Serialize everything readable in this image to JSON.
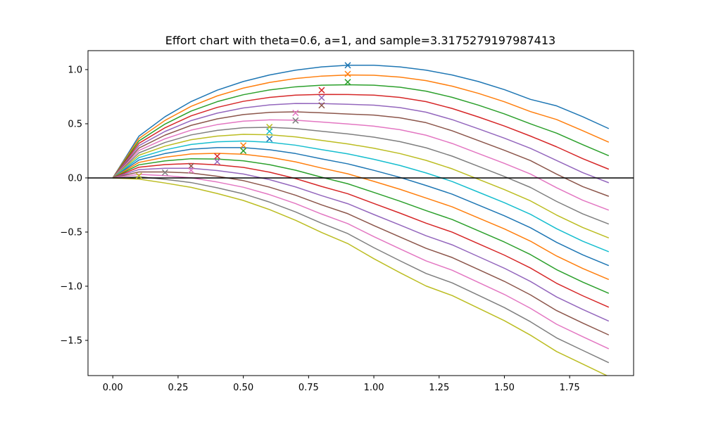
{
  "chart_data": {
    "type": "line",
    "title": "Effort chart with theta=0.6, a=1, and sample=3.3175279197987413",
    "xlabel": "",
    "ylabel": "",
    "xlim": [
      -0.095,
      1.995
    ],
    "ylim": [
      -1.825,
      1.175
    ],
    "x_ticks": [
      0.0,
      0.25,
      0.5,
      0.75,
      1.0,
      1.25,
      1.5,
      1.75
    ],
    "x_tick_labels": [
      "0.00",
      "0.25",
      "0.50",
      "0.75",
      "1.00",
      "1.25",
      "1.50",
      "1.75"
    ],
    "y_ticks": [
      -1.5,
      -1.0,
      -0.5,
      0.0,
      0.5,
      1.0
    ],
    "y_tick_labels": [
      "−1.5",
      "−1.0",
      "−0.5",
      "0.0",
      "0.5",
      "1.0"
    ],
    "grid": false,
    "reference_line": {
      "y": 0.0,
      "color": "#000000"
    },
    "x": [
      0.0,
      0.1,
      0.2,
      0.3,
      0.4,
      0.5,
      0.6,
      0.7,
      0.8,
      0.9,
      1.0,
      1.1,
      1.2,
      1.3,
      1.4,
      1.5,
      1.6,
      1.7,
      1.8,
      1.9
    ],
    "marker_style": "x",
    "series": [
      {
        "color": "#1f77b4",
        "values": [
          0.0,
          0.385,
          0.565,
          0.705,
          0.81,
          0.89,
          0.95,
          0.995,
          1.025,
          1.04,
          1.04,
          1.025,
          0.995,
          0.95,
          0.89,
          0.815,
          0.725,
          0.665,
          0.565,
          0.455
        ],
        "marker": {
          "x": 0.9,
          "y": 1.04
        }
      },
      {
        "color": "#ff7f0e",
        "values": [
          0.0,
          0.363,
          0.531,
          0.661,
          0.757,
          0.829,
          0.881,
          0.918,
          0.94,
          0.95,
          0.948,
          0.931,
          0.898,
          0.847,
          0.781,
          0.703,
          0.612,
          0.539,
          0.436,
          0.33
        ],
        "marker": {
          "x": 0.9,
          "y": 0.96
        }
      },
      {
        "color": "#2ca02c",
        "values": [
          0.0,
          0.341,
          0.497,
          0.617,
          0.704,
          0.768,
          0.812,
          0.841,
          0.856,
          0.86,
          0.856,
          0.837,
          0.801,
          0.744,
          0.672,
          0.591,
          0.499,
          0.413,
          0.307,
          0.205
        ],
        "marker": {
          "x": 0.9,
          "y": 0.885
        }
      },
      {
        "color": "#d62728",
        "values": [
          0.0,
          0.319,
          0.463,
          0.573,
          0.651,
          0.707,
          0.743,
          0.764,
          0.771,
          0.77,
          0.764,
          0.743,
          0.704,
          0.641,
          0.563,
          0.479,
          0.386,
          0.287,
          0.178,
          0.08
        ],
        "marker": {
          "x": 0.8,
          "y": 0.81
        }
      },
      {
        "color": "#9467bd",
        "values": [
          0.0,
          0.297,
          0.429,
          0.529,
          0.598,
          0.646,
          0.674,
          0.687,
          0.686,
          0.68,
          0.672,
          0.649,
          0.607,
          0.538,
          0.454,
          0.367,
          0.273,
          0.161,
          0.049,
          -0.045
        ],
        "marker": {
          "x": 0.8,
          "y": 0.74
        }
      },
      {
        "color": "#8c564b",
        "values": [
          0.0,
          0.275,
          0.395,
          0.485,
          0.545,
          0.585,
          0.605,
          0.61,
          0.601,
          0.59,
          0.58,
          0.555,
          0.51,
          0.435,
          0.345,
          0.255,
          0.16,
          0.035,
          -0.08,
          -0.17
        ],
        "marker": {
          "x": 0.8,
          "y": 0.67
        }
      },
      {
        "color": "#e377c2",
        "values": [
          0.0,
          0.253,
          0.361,
          0.441,
          0.492,
          0.524,
          0.536,
          0.533,
          0.516,
          0.498,
          0.478,
          0.445,
          0.394,
          0.318,
          0.226,
          0.134,
          0.036,
          -0.091,
          -0.206,
          -0.298
        ],
        "marker": {
          "x": 0.7,
          "y": 0.6
        }
      },
      {
        "color": "#7f7f7f",
        "values": [
          0.0,
          0.231,
          0.327,
          0.397,
          0.439,
          0.463,
          0.467,
          0.456,
          0.431,
          0.406,
          0.376,
          0.335,
          0.278,
          0.201,
          0.107,
          0.013,
          -0.088,
          -0.217,
          -0.332,
          -0.426
        ],
        "marker": {
          "x": 0.7,
          "y": 0.53
        }
      },
      {
        "color": "#bcbd22",
        "values": [
          0.0,
          0.209,
          0.293,
          0.353,
          0.386,
          0.402,
          0.398,
          0.379,
          0.346,
          0.314,
          0.274,
          0.225,
          0.162,
          0.084,
          -0.012,
          -0.108,
          -0.212,
          -0.343,
          -0.458,
          -0.554
        ],
        "marker": {
          "x": 0.6,
          "y": 0.47
        }
      },
      {
        "color": "#17becf",
        "values": [
          0.0,
          0.187,
          0.259,
          0.309,
          0.333,
          0.341,
          0.329,
          0.302,
          0.261,
          0.222,
          0.172,
          0.115,
          0.046,
          -0.033,
          -0.131,
          -0.229,
          -0.336,
          -0.469,
          -0.584,
          -0.682
        ],
        "marker": {
          "x": 0.6,
          "y": 0.43
        }
      },
      {
        "color": "#1f77b4",
        "values": [
          0.0,
          0.165,
          0.225,
          0.265,
          0.28,
          0.28,
          0.26,
          0.225,
          0.176,
          0.13,
          0.07,
          0.005,
          -0.07,
          -0.15,
          -0.25,
          -0.35,
          -0.46,
          -0.595,
          -0.71,
          -0.81
        ],
        "marker": {
          "x": 0.6,
          "y": 0.36
        }
      },
      {
        "color": "#ff7f0e",
        "values": [
          0.0,
          0.143,
          0.191,
          0.221,
          0.227,
          0.219,
          0.191,
          0.148,
          0.091,
          0.038,
          -0.032,
          -0.105,
          -0.186,
          -0.267,
          -0.369,
          -0.471,
          -0.584,
          -0.721,
          -0.836,
          -0.938
        ],
        "marker": {
          "x": 0.5,
          "y": 0.3
        }
      },
      {
        "color": "#2ca02c",
        "values": [
          0.0,
          0.121,
          0.157,
          0.177,
          0.174,
          0.158,
          0.122,
          0.071,
          0.006,
          -0.054,
          -0.134,
          -0.215,
          -0.302,
          -0.384,
          -0.488,
          -0.592,
          -0.708,
          -0.847,
          -0.962,
          -1.066
        ],
        "marker": {
          "x": 0.5,
          "y": 0.25
        }
      },
      {
        "color": "#d62728",
        "values": [
          0.0,
          0.099,
          0.123,
          0.133,
          0.121,
          0.097,
          0.053,
          -0.006,
          -0.079,
          -0.146,
          -0.236,
          -0.325,
          -0.418,
          -0.501,
          -0.607,
          -0.713,
          -0.832,
          -0.973,
          -1.088,
          -1.194
        ],
        "marker": {
          "x": 0.4,
          "y": 0.2
        }
      },
      {
        "color": "#9467bd",
        "values": [
          0.0,
          0.077,
          0.089,
          0.089,
          0.068,
          0.036,
          -0.016,
          -0.083,
          -0.164,
          -0.238,
          -0.338,
          -0.435,
          -0.534,
          -0.618,
          -0.726,
          -0.834,
          -0.956,
          -1.099,
          -1.214,
          -1.322
        ],
        "marker": {
          "x": 0.4,
          "y": 0.15
        }
      },
      {
        "color": "#8c564b",
        "values": [
          0.0,
          0.055,
          0.055,
          0.045,
          0.015,
          -0.025,
          -0.085,
          -0.16,
          -0.249,
          -0.33,
          -0.44,
          -0.545,
          -0.65,
          -0.735,
          -0.845,
          -0.955,
          -1.08,
          -1.225,
          -1.34,
          -1.45
        ],
        "marker": {
          "x": 0.3,
          "y": 0.11
        }
      },
      {
        "color": "#e377c2",
        "values": [
          0.0,
          0.033,
          0.021,
          0.001,
          -0.038,
          -0.086,
          -0.154,
          -0.237,
          -0.334,
          -0.422,
          -0.542,
          -0.655,
          -0.766,
          -0.852,
          -0.964,
          -1.076,
          -1.204,
          -1.351,
          -1.466,
          -1.578
        ],
        "marker": {
          "x": 0.3,
          "y": 0.07
        }
      },
      {
        "color": "#7f7f7f",
        "values": [
          0.0,
          0.011,
          -0.013,
          -0.043,
          -0.091,
          -0.147,
          -0.223,
          -0.314,
          -0.419,
          -0.514,
          -0.644,
          -0.765,
          -0.882,
          -0.969,
          -1.083,
          -1.197,
          -1.328,
          -1.477,
          -1.592,
          -1.706
        ],
        "marker": {
          "x": 0.2,
          "y": 0.05
        }
      },
      {
        "color": "#bcbd22",
        "values": [
          0.0,
          -0.011,
          -0.047,
          -0.087,
          -0.144,
          -0.208,
          -0.292,
          -0.391,
          -0.504,
          -0.606,
          -0.746,
          -0.875,
          -0.998,
          -1.086,
          -1.202,
          -1.318,
          -1.452,
          -1.603,
          -1.718,
          -1.834
        ],
        "marker": {
          "x": 0.1,
          "y": 0.02
        }
      }
    ]
  }
}
